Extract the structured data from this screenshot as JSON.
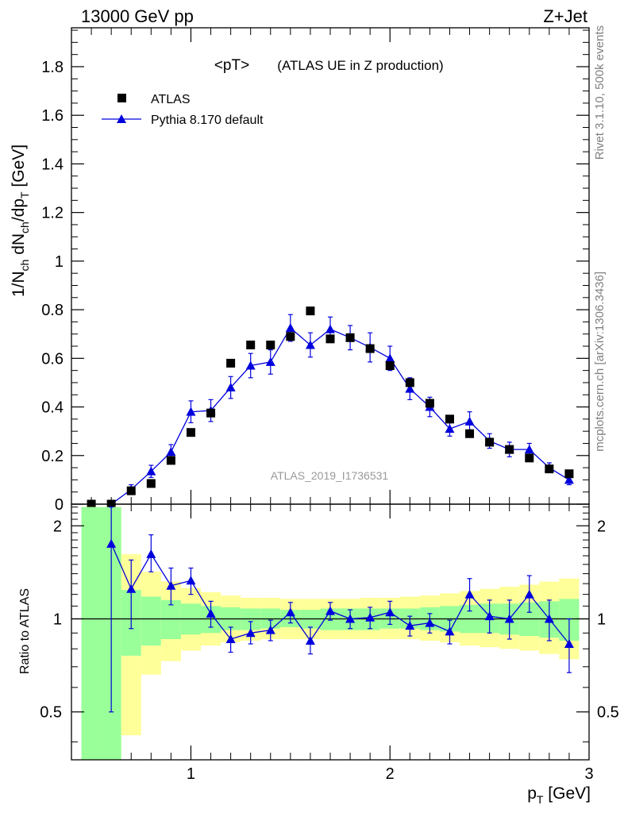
{
  "header": {
    "left": "13000 GeV pp",
    "right": "Z+Jet"
  },
  "side_labels": {
    "rivet": "Rivet 3.1.10,  500k events",
    "mcplots": "mcplots.cern.ch [arXiv:1306.3436]"
  },
  "watermark": "ATLAS_2019_I1736531",
  "colors": {
    "mc": "#0000dd",
    "band_inner": "#99ff99",
    "band_outer": "#ffff99",
    "data": "#000000",
    "watermark": "#999999"
  },
  "chart_data": [
    {
      "type": "scatter",
      "title": "<pT> (ATLAS UE in Z production)",
      "title_main": "<pT>",
      "title_sub": "(ATLAS UE in Z production)",
      "ylabel": "1/N_ch dN_ch/dp_T [GeV]",
      "xlim": [
        0.4,
        3.0
      ],
      "ylim": [
        0,
        1.96
      ],
      "yticks": [
        0,
        0.2,
        0.4,
        0.6,
        0.8,
        1,
        1.2,
        1.4,
        1.6,
        1.8
      ],
      "ytick_labels": [
        "0",
        "0.2",
        "0.4",
        "0.6",
        "0.8",
        "1",
        "1.2",
        "1.4",
        "1.6",
        "1.8"
      ],
      "legend_position": "top-left",
      "series": [
        {
          "name": "ATLAS",
          "marker": "square",
          "x": [
            0.5,
            0.6,
            0.7,
            0.8,
            0.9,
            1.0,
            1.1,
            1.2,
            1.3,
            1.4,
            1.5,
            1.6,
            1.7,
            1.8,
            1.9,
            2.0,
            2.1,
            2.2,
            2.3,
            2.4,
            2.5,
            2.6,
            2.7,
            2.8,
            2.9
          ],
          "y": [
            0.0,
            0.0,
            0.055,
            0.085,
            0.18,
            0.295,
            0.375,
            0.58,
            0.655,
            0.655,
            0.69,
            0.795,
            0.68,
            0.685,
            0.64,
            0.57,
            0.5,
            0.415,
            0.35,
            0.29,
            0.255,
            0.225,
            0.19,
            0.145,
            0.125
          ]
        },
        {
          "name": "Pythia 8.170 default",
          "marker": "triangle",
          "x": [
            0.6,
            0.7,
            0.8,
            0.9,
            1.0,
            1.1,
            1.2,
            1.3,
            1.4,
            1.5,
            1.6,
            1.7,
            1.8,
            1.9,
            2.0,
            2.1,
            2.2,
            2.3,
            2.4,
            2.5,
            2.6,
            2.7,
            2.8,
            2.9
          ],
          "y": [
            0.0,
            0.06,
            0.135,
            0.215,
            0.38,
            0.385,
            0.48,
            0.57,
            0.585,
            0.725,
            0.655,
            0.72,
            0.685,
            0.645,
            0.6,
            0.475,
            0.4,
            0.31,
            0.34,
            0.26,
            0.225,
            0.225,
            0.15,
            0.1
          ],
          "yerr": [
            0.0,
            0.02,
            0.025,
            0.03,
            0.045,
            0.045,
            0.045,
            0.05,
            0.05,
            0.055,
            0.05,
            0.05,
            0.05,
            0.06,
            0.05,
            0.045,
            0.04,
            0.03,
            0.04,
            0.03,
            0.03,
            0.025,
            0.02,
            0.02
          ]
        }
      ]
    },
    {
      "type": "scatter",
      "ylabel": "Ratio to ATLAS",
      "xlabel": "p_T [GeV]",
      "xlim": [
        0.4,
        3.0
      ],
      "ylim": [
        0.35,
        2.35
      ],
      "xticks": [
        1,
        2,
        3
      ],
      "xtick_labels": [
        "1",
        "2",
        "3"
      ],
      "yticks": [
        0.5,
        1,
        2
      ],
      "ytick_labels": [
        "0.5",
        "1",
        "2"
      ],
      "reference_line": 1,
      "bands": {
        "x_edges": [
          0.45,
          0.55,
          0.65,
          0.75,
          0.85,
          0.95,
          1.05,
          1.15,
          1.25,
          1.35,
          1.45,
          1.55,
          1.65,
          1.75,
          1.85,
          1.95,
          2.05,
          2.15,
          2.25,
          2.35,
          2.45,
          2.55,
          2.65,
          2.75,
          2.85,
          2.95
        ],
        "inner_low": [
          0.3,
          0.3,
          0.76,
          0.82,
          0.86,
          0.89,
          0.9,
          0.92,
          0.92,
          0.93,
          0.94,
          0.93,
          0.92,
          0.92,
          0.92,
          0.93,
          0.93,
          0.92,
          0.91,
          0.9,
          0.9,
          0.89,
          0.88,
          0.87,
          0.85
        ],
        "inner_high": [
          2.3,
          2.3,
          1.24,
          1.18,
          1.15,
          1.12,
          1.1,
          1.09,
          1.08,
          1.08,
          1.07,
          1.07,
          1.08,
          1.08,
          1.08,
          1.08,
          1.08,
          1.09,
          1.1,
          1.11,
          1.12,
          1.12,
          1.13,
          1.14,
          1.16
        ],
        "outer_low": [
          0.3,
          0.3,
          0.42,
          0.66,
          0.73,
          0.79,
          0.82,
          0.84,
          0.85,
          0.86,
          0.86,
          0.86,
          0.86,
          0.86,
          0.86,
          0.86,
          0.86,
          0.85,
          0.84,
          0.82,
          0.81,
          0.8,
          0.79,
          0.77,
          0.74
        ],
        "outer_high": [
          2.3,
          2.3,
          1.62,
          1.42,
          1.32,
          1.26,
          1.22,
          1.19,
          1.17,
          1.17,
          1.16,
          1.16,
          1.16,
          1.16,
          1.17,
          1.17,
          1.18,
          1.19,
          1.21,
          1.23,
          1.25,
          1.27,
          1.29,
          1.32,
          1.35
        ]
      },
      "series": [
        {
          "name": "Pythia 8.170 default",
          "marker": "triangle",
          "x": [
            0.6,
            0.7,
            0.8,
            0.9,
            1.0,
            1.1,
            1.2,
            1.3,
            1.4,
            1.5,
            1.6,
            1.7,
            1.8,
            1.9,
            2.0,
            2.1,
            2.2,
            2.3,
            2.4,
            2.5,
            2.6,
            2.7,
            2.8,
            2.9
          ],
          "y": [
            1.75,
            1.25,
            1.62,
            1.28,
            1.33,
            1.04,
            0.86,
            0.9,
            0.92,
            1.05,
            0.85,
            1.06,
            1.0,
            1.01,
            1.05,
            0.95,
            0.97,
            0.91,
            1.2,
            1.02,
            1.0,
            1.2,
            1.0,
            0.83
          ],
          "yerr_low": [
            1.25,
            0.32,
            0.2,
            0.17,
            0.13,
            0.1,
            0.08,
            0.07,
            0.07,
            0.08,
            0.08,
            0.07,
            0.07,
            0.08,
            0.09,
            0.07,
            0.07,
            0.08,
            0.14,
            0.12,
            0.14,
            0.15,
            0.15,
            0.16
          ],
          "yerr_high": [
            0.55,
            0.3,
            0.25,
            0.18,
            0.13,
            0.1,
            0.08,
            0.08,
            0.07,
            0.08,
            0.09,
            0.07,
            0.07,
            0.08,
            0.09,
            0.07,
            0.07,
            0.08,
            0.15,
            0.13,
            0.15,
            0.18,
            0.15,
            0.17
          ]
        }
      ]
    }
  ]
}
